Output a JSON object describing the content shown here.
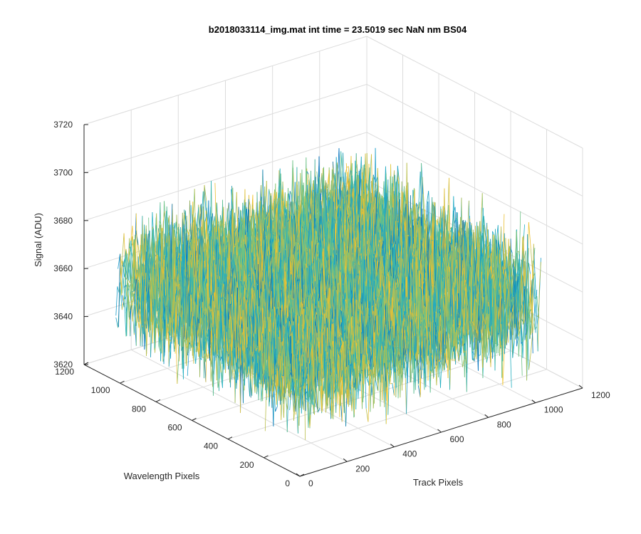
{
  "chart_data": {
    "type": "surface",
    "title": "b2018033114_img.mat int time = 23.5019 sec   NaN nm BS04",
    "xlabel": "Track Pixels",
    "ylabel": "Wavelength Pixels",
    "zlabel": "Signal (ADU)",
    "xlim": [
      0,
      1200
    ],
    "ylim": [
      0,
      1200
    ],
    "zlim": [
      3620,
      3720
    ],
    "x_ticks": [
      "0",
      "200",
      "400",
      "600",
      "800",
      "1000",
      "1200"
    ],
    "y_ticks": [
      "0",
      "200",
      "400",
      "600",
      "800",
      "1000",
      "1200"
    ],
    "z_ticks": [
      "3620",
      "3640",
      "3660",
      "3680",
      "3700",
      "3720"
    ],
    "grid": true,
    "data_extent": {
      "x": [
        1,
        1024
      ],
      "y": [
        1,
        1024
      ]
    },
    "signal_mean": 3662,
    "signal_spread": 12,
    "colors": [
      "#0072BD",
      "#1A9CC9",
      "#23AFC0",
      "#6CC285",
      "#B9BE4A",
      "#E9BE32",
      "#F5C82E"
    ]
  }
}
